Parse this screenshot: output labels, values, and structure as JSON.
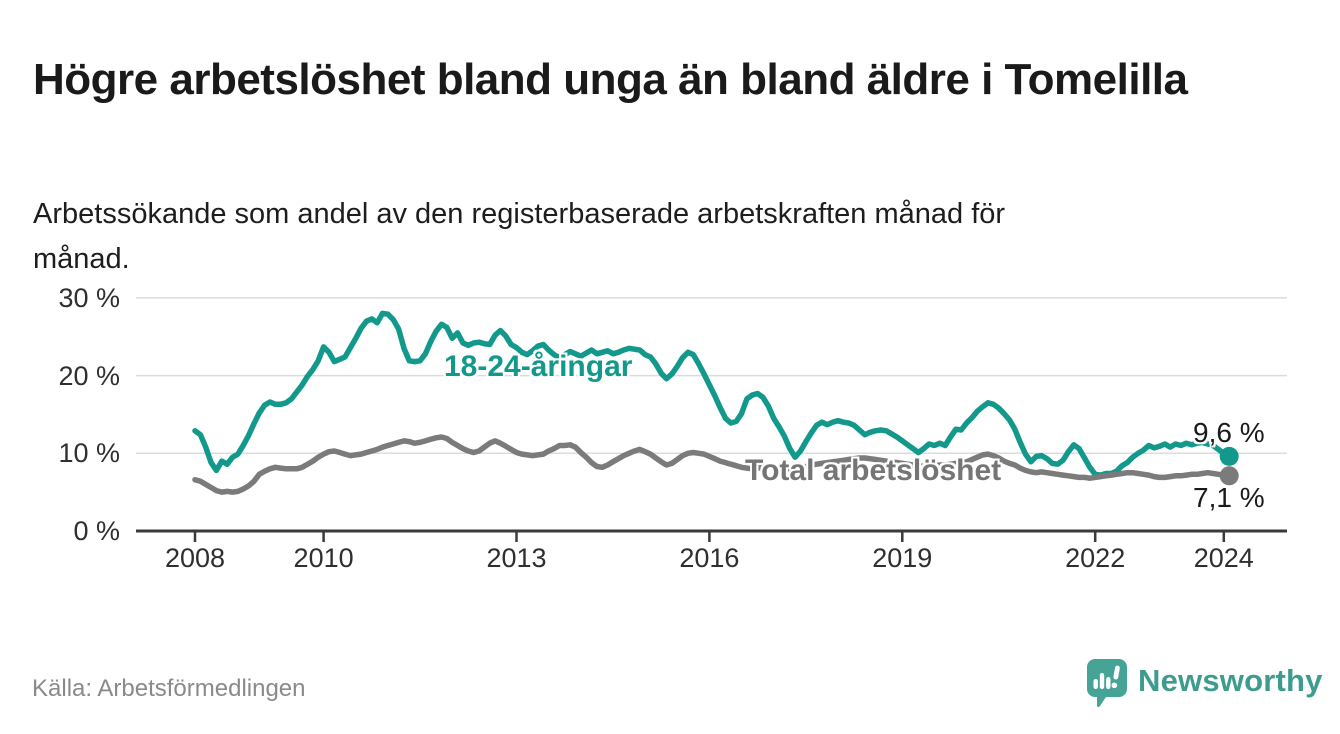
{
  "header": {
    "title": "Högre arbetslöshet bland unga än bland äldre i Tomelilla",
    "subtitle": "Arbetssökande som andel av den registerbaserade arbetskraften månad för månad."
  },
  "chart_data": {
    "type": "line",
    "title": "Högre arbetslöshet bland unga än bland äldre i Tomelilla",
    "unit": "%",
    "grid": "horizontal-only",
    "x_start_year": 2008,
    "points_per_year": 12,
    "x_ticks": [
      2008,
      2010,
      2013,
      2016,
      2019,
      2022,
      2024
    ],
    "x_tick_labels": [
      "2008",
      "2010",
      "2013",
      "2016",
      "2019",
      "2022",
      "2024"
    ],
    "y_ticks": [
      0,
      10,
      20,
      30
    ],
    "y_tick_labels": [
      "0 %",
      "10 %",
      "20 %",
      "30 %"
    ],
    "ylim": [
      0,
      31
    ],
    "xlim": [
      2007.0,
      2025.0
    ],
    "series": [
      {
        "id": "youth",
        "name": "18-24-åringar",
        "label": "18-24-åringar",
        "color": "#12998c",
        "end_label": "9,6 %",
        "end_value": 9.6,
        "values": [
          12.9,
          12.4,
          10.8,
          8.8,
          7.8,
          9.0,
          8.6,
          9.5,
          9.9,
          11.0,
          12.3,
          13.8,
          15.2,
          16.2,
          16.6,
          16.3,
          16.3,
          16.5,
          17.0,
          17.9,
          18.8,
          19.9,
          20.8,
          21.9,
          23.7,
          23.0,
          21.8,
          22.1,
          22.4,
          23.6,
          24.8,
          26.1,
          27.0,
          27.3,
          26.8,
          28.0,
          27.9,
          27.2,
          26.0,
          23.5,
          21.9,
          21.8,
          21.9,
          22.8,
          24.4,
          25.7,
          26.6,
          26.2,
          24.8,
          25.5,
          24.2,
          23.9,
          24.2,
          24.3,
          24.1,
          24.0,
          25.2,
          25.8,
          25.1,
          24.0,
          23.6,
          23.0,
          22.7,
          23.2,
          23.8,
          24.0,
          23.3,
          22.7,
          22.3,
          22.7,
          23.1,
          22.8,
          22.5,
          22.9,
          23.3,
          22.8,
          23.0,
          23.2,
          22.8,
          23.0,
          23.3,
          23.5,
          23.4,
          23.3,
          22.7,
          22.4,
          21.5,
          20.3,
          19.6,
          20.2,
          21.2,
          22.3,
          23.0,
          22.7,
          21.5,
          20.2,
          18.8,
          17.4,
          15.9,
          14.5,
          13.9,
          14.1,
          15.1,
          17.0,
          17.5,
          17.7,
          17.2,
          16.1,
          14.5,
          13.4,
          12.2,
          10.6,
          9.5,
          10.3,
          11.5,
          12.6,
          13.6,
          14.0,
          13.7,
          14.0,
          14.2,
          14.0,
          13.9,
          13.6,
          13.0,
          12.4,
          12.7,
          12.9,
          13.0,
          12.9,
          12.5,
          12.1,
          11.6,
          11.1,
          10.6,
          10.1,
          10.6,
          11.2,
          11.0,
          11.3,
          11.0,
          12.1,
          13.1,
          13.0,
          13.9,
          14.6,
          15.4,
          16.0,
          16.5,
          16.3,
          15.8,
          15.1,
          14.3,
          13.1,
          11.4,
          9.9,
          8.9,
          9.6,
          9.7,
          9.3,
          8.7,
          8.6,
          9.1,
          10.2,
          11.1,
          10.6,
          9.4,
          8.2,
          7.3,
          7.2,
          7.4,
          7.4,
          7.7,
          8.4,
          8.8,
          9.5,
          10.0,
          10.4,
          11.0,
          10.7,
          10.9,
          11.2,
          10.8,
          11.2,
          11.0,
          11.3,
          11.1,
          11.3,
          11.4,
          11.2,
          11.0,
          10.5,
          10.0,
          9.6
        ]
      },
      {
        "id": "total",
        "name": "Total arbetslöshet",
        "label": "Total arbetslöshet",
        "color": "#7b7b7b",
        "end_label": "7,1 %",
        "end_value": 7.1,
        "values": [
          6.6,
          6.4,
          6.0,
          5.6,
          5.2,
          5.0,
          5.1,
          5.0,
          5.1,
          5.4,
          5.8,
          6.4,
          7.3,
          7.7,
          8.0,
          8.2,
          8.1,
          8.0,
          8.0,
          8.0,
          8.2,
          8.6,
          9.0,
          9.5,
          9.9,
          10.2,
          10.3,
          10.1,
          9.9,
          9.7,
          9.8,
          9.9,
          10.1,
          10.3,
          10.5,
          10.8,
          11.0,
          11.2,
          11.4,
          11.6,
          11.5,
          11.3,
          11.4,
          11.6,
          11.8,
          12.0,
          12.1,
          11.9,
          11.4,
          11.0,
          10.6,
          10.3,
          10.1,
          10.3,
          10.8,
          11.3,
          11.6,
          11.3,
          10.9,
          10.5,
          10.1,
          9.9,
          9.8,
          9.7,
          9.8,
          9.9,
          10.3,
          10.6,
          11.0,
          11.0,
          11.1,
          10.8,
          10.1,
          9.5,
          8.8,
          8.3,
          8.2,
          8.5,
          8.9,
          9.3,
          9.7,
          10.0,
          10.3,
          10.5,
          10.2,
          9.9,
          9.4,
          8.9,
          8.5,
          8.7,
          9.2,
          9.7,
          10.0,
          10.1,
          10.0,
          9.9,
          9.6,
          9.3,
          9.0,
          8.8,
          8.6,
          8.4,
          8.2,
          8.1,
          8.0,
          8.1,
          8.2,
          8.3,
          8.3,
          8.2,
          8.1,
          8.0,
          8.0,
          8.1,
          8.3,
          8.5,
          8.6,
          8.7,
          8.8,
          8.9,
          9.0,
          9.1,
          9.2,
          9.3,
          9.4,
          9.4,
          9.3,
          9.2,
          9.1,
          9.0,
          8.9,
          8.8,
          8.7,
          8.6,
          8.5,
          8.4,
          8.3,
          8.3,
          8.4,
          8.5,
          8.5,
          8.6,
          8.7,
          8.8,
          8.9,
          9.2,
          9.5,
          9.8,
          9.9,
          9.7,
          9.4,
          9.0,
          8.7,
          8.5,
          8.1,
          7.8,
          7.6,
          7.5,
          7.6,
          7.5,
          7.4,
          7.3,
          7.2,
          7.1,
          7.0,
          6.9,
          6.9,
          6.8,
          6.9,
          7.0,
          7.1,
          7.2,
          7.3,
          7.4,
          7.5,
          7.5,
          7.4,
          7.3,
          7.2,
          7.0,
          6.9,
          6.9,
          7.0,
          7.1,
          7.1,
          7.2,
          7.3,
          7.3,
          7.4,
          7.5,
          7.4,
          7.3,
          7.2,
          7.1
        ]
      }
    ]
  },
  "footer": {
    "source": "Källa: Arbetsförmedlingen",
    "logo_text": "Newsworthy"
  },
  "colors": {
    "accent_teal": "#12998c",
    "line_gray": "#7b7b7b",
    "logo_teal": "#46a496",
    "title_text": "#1a1a1a",
    "axis_text": "#2f2f2f",
    "axis_line": "#3a3a3a",
    "gridline": "#dcdcdc",
    "source_text": "#8a8a8a",
    "background": "#ffffff"
  }
}
